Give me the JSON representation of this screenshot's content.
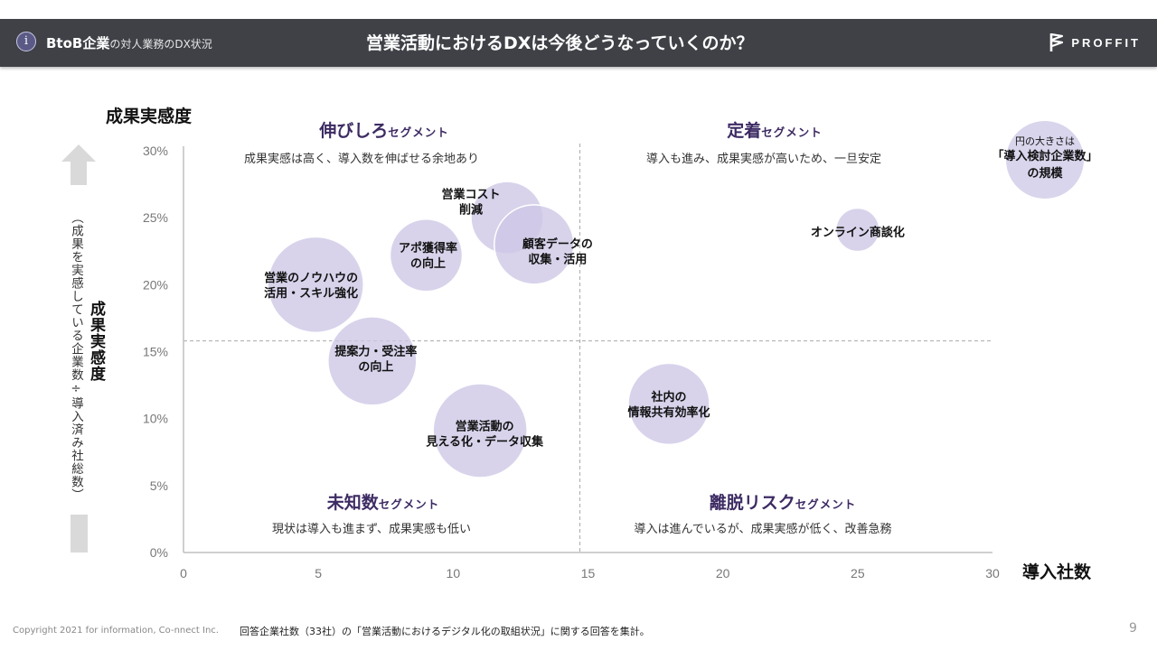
{
  "header": {
    "info_icon": "i",
    "section_strong": "BtoB企業",
    "section_light": "の対人業務のDX状況",
    "title": "営業活動におけるDXは今後どうなっていくのか？",
    "logo_text": "PROFFIT",
    "logo_icon": "flag-logo-icon"
  },
  "axes_labels": {
    "y_title": "成果実感度",
    "y_main": "成果実感度",
    "y_sub": "（成果を実感している企業数÷導入済み社総数）",
    "x_title": "導入社数",
    "up_arrow_icon": "arrow-up-icon"
  },
  "segments": [
    {
      "name_big": "伸びしろ",
      "name_small": "セグメント",
      "desc": "成果実感は高く、導入数を伸ばせる余地あり"
    },
    {
      "name_big": "定着",
      "name_small": "セグメント",
      "desc": "導入も進み、成果実感が高いため、一旦安定"
    },
    {
      "name_big": "未知数",
      "name_small": "セグメント",
      "desc": "現状は導入も進まず、成果実感も低い"
    },
    {
      "name_big": "離脱リスク",
      "name_small": "セグメント",
      "desc": "導入は進んでいるが、成果実感が低く、改善急務"
    }
  ],
  "legend": {
    "line1": "円の大きさは",
    "line2": "「導入検討企業数」",
    "line3": "の規模"
  },
  "chart_data": {
    "type": "scatter",
    "subtype": "bubble",
    "title": "営業活動におけるDXは今後どうなっていくのか？",
    "xlabel": "導入社数",
    "ylabel": "成果実感度",
    "xlim": [
      0,
      30
    ],
    "ylim": [
      0,
      30
    ],
    "x_ticks": [
      "0",
      "5",
      "10",
      "15",
      "20",
      "25",
      "30"
    ],
    "y_ticks": [
      "0%",
      "5%",
      "10%",
      "15%",
      "20%",
      "25%",
      "30%"
    ],
    "x_tick_values": [
      0,
      5,
      10,
      15,
      20,
      25,
      30
    ],
    "y_tick_values": [
      0,
      5,
      10,
      15,
      20,
      25,
      30
    ],
    "y_unit": "%",
    "grid": false,
    "reference_lines": {
      "x": 14.7,
      "y": 15.8
    },
    "bubble_color": "#cdc6e6",
    "size_meaning": "導入検討企業数",
    "points": [
      {
        "label": [
          "営業のノウハウの",
          "活用・スキル強化"
        ],
        "x": 4.9,
        "y": 20.0,
        "size": 53
      },
      {
        "label": [
          "アポ獲得率",
          "の向上"
        ],
        "x": 9.0,
        "y": 22.2,
        "size": 40
      },
      {
        "label": [
          "営業コスト",
          "削減"
        ],
        "x": 12.0,
        "y": 25.0,
        "size": 40
      },
      {
        "label": [
          "顧客データの",
          "収集・活用"
        ],
        "x": 13.0,
        "y": 23.0,
        "size": 44
      },
      {
        "label": [
          "提案力・受注率",
          "の向上"
        ],
        "x": 7.0,
        "y": 14.3,
        "size": 49
      },
      {
        "label": [
          "営業活動の",
          "見える化・データ収集"
        ],
        "x": 11.0,
        "y": 9.1,
        "size": 52
      },
      {
        "label": [
          "社内の",
          "情報共有効率化"
        ],
        "x": 18.0,
        "y": 11.1,
        "size": 45
      },
      {
        "label": [
          "オンライン商談化"
        ],
        "x": 25.0,
        "y": 24.1,
        "size": 24
      }
    ]
  },
  "footer": {
    "copyright": "Copyright 2021 for information, Co-nnect Inc.",
    "note": "回答企業社数（33社）の「営業活動におけるデジタル化の取組状況」に関する回答を集計。",
    "page": "9"
  }
}
